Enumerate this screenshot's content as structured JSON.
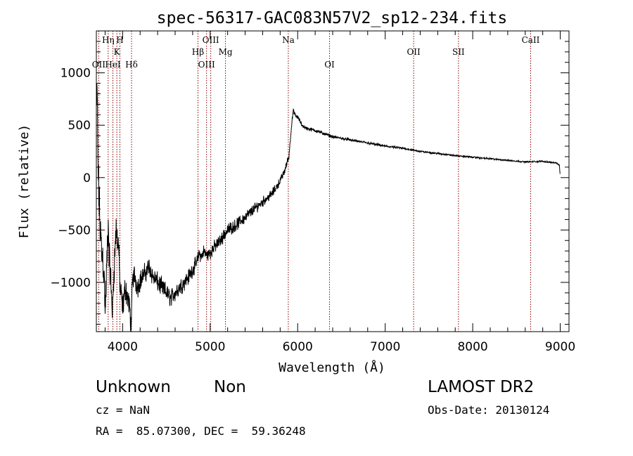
{
  "chart_data": {
    "type": "line",
    "title": "spec-56317-GAC083N57V2_sp12-234.fits",
    "xlabel": "Wavelength (Å)",
    "ylabel": "Flux (relative)",
    "xlim": [
      3700,
      9100
    ],
    "ylim": [
      -1470,
      1400
    ],
    "xticks": [
      4000,
      5000,
      6000,
      7000,
      8000,
      9000
    ],
    "yticks": [
      -1000,
      -500,
      0,
      500,
      1000
    ],
    "x_minor_step": 200,
    "y_minor_step": 100,
    "grid": false,
    "line_color": "#000000",
    "marker_color": "#8b0000",
    "anchors": [
      [
        3705,
        700
      ],
      [
        3710,
        800
      ],
      [
        3715,
        400
      ],
      [
        3722,
        0
      ],
      [
        3730,
        -200
      ],
      [
        3745,
        -500
      ],
      [
        3760,
        -700
      ],
      [
        3780,
        -800
      ],
      [
        3795,
        -1100
      ],
      [
        3800,
        -1300
      ],
      [
        3815,
        -950
      ],
      [
        3835,
        -450
      ],
      [
        3850,
        -800
      ],
      [
        3870,
        -1050
      ],
      [
        3885,
        -1300
      ],
      [
        3900,
        -900
      ],
      [
        3925,
        -500
      ],
      [
        3955,
        -650
      ],
      [
        3970,
        -1050
      ],
      [
        4000,
        -1250
      ],
      [
        4030,
        -1050
      ],
      [
        4060,
        -1150
      ],
      [
        4080,
        -1250
      ],
      [
        4100,
        -1450
      ],
      [
        4110,
        -1000
      ],
      [
        4130,
        -920
      ],
      [
        4170,
        -1050
      ],
      [
        4200,
        -980
      ],
      [
        4250,
        -920
      ],
      [
        4300,
        -850
      ],
      [
        4350,
        -950
      ],
      [
        4400,
        -1000
      ],
      [
        4450,
        -1050
      ],
      [
        4500,
        -1100
      ],
      [
        4550,
        -1150
      ],
      [
        4600,
        -1100
      ],
      [
        4650,
        -1050
      ],
      [
        4700,
        -1000
      ],
      [
        4750,
        -950
      ],
      [
        4800,
        -880
      ],
      [
        4850,
        -800
      ],
      [
        4880,
        -720
      ],
      [
        4900,
        -760
      ],
      [
        4930,
        -700
      ],
      [
        4960,
        -740
      ],
      [
        5000,
        -720
      ],
      [
        5050,
        -660
      ],
      [
        5100,
        -620
      ],
      [
        5150,
        -560
      ],
      [
        5200,
        -500
      ],
      [
        5300,
        -450
      ],
      [
        5400,
        -380
      ],
      [
        5500,
        -300
      ],
      [
        5600,
        -230
      ],
      [
        5700,
        -160
      ],
      [
        5750,
        -100
      ],
      [
        5800,
        -30
      ],
      [
        5850,
        60
      ],
      [
        5880,
        150
      ],
      [
        5900,
        200
      ],
      [
        5930,
        500
      ],
      [
        5950,
        640
      ],
      [
        5980,
        580
      ],
      [
        6000,
        580
      ],
      [
        6050,
        500
      ],
      [
        6100,
        470
      ],
      [
        6200,
        450
      ],
      [
        6300,
        420
      ],
      [
        6400,
        390
      ],
      [
        6600,
        360
      ],
      [
        6800,
        330
      ],
      [
        7000,
        300
      ],
      [
        7200,
        280
      ],
      [
        7400,
        250
      ],
      [
        7600,
        230
      ],
      [
        7800,
        210
      ],
      [
        8000,
        195
      ],
      [
        8200,
        180
      ],
      [
        8400,
        165
      ],
      [
        8600,
        150
      ],
      [
        8800,
        155
      ],
      [
        8950,
        140
      ],
      [
        8990,
        120
      ],
      [
        9000,
        10
      ]
    ],
    "noise": [
      [
        3700,
        300
      ],
      [
        4000,
        160
      ],
      [
        4200,
        120
      ],
      [
        4500,
        110
      ],
      [
        4900,
        80
      ],
      [
        5400,
        70
      ],
      [
        5900,
        40
      ],
      [
        5950,
        25
      ],
      [
        6500,
        16
      ],
      [
        7500,
        11
      ],
      [
        9000,
        8
      ]
    ],
    "lines": [
      {
        "label": "OII",
        "x": 3727,
        "row": 3
      },
      {
        "label": "Hη",
        "x": 3835,
        "row": 1
      },
      {
        "label": "HeI",
        "x": 3889,
        "row": 3
      },
      {
        "label": "K",
        "x": 3934,
        "row": 2
      },
      {
        "label": "H",
        "x": 3969,
        "row": 1
      },
      {
        "label": "Hδ",
        "x": 4102,
        "row": 3
      },
      {
        "label": "Hβ",
        "x": 4861,
        "row": 2
      },
      {
        "label": "OIII",
        "x": 4959,
        "row": 3
      },
      {
        "label": "OIII",
        "x": 5007,
        "row": 1
      },
      {
        "label": "Mg",
        "x": 5175,
        "row": 2
      },
      {
        "label": "Na",
        "x": 5893,
        "row": 1
      },
      {
        "label": "OI",
        "x": 6364,
        "row": 3
      },
      {
        "label": "OII",
        "x": 7325,
        "row": 2
      },
      {
        "label": "SII",
        "x": 7837,
        "row": 2
      },
      {
        "label": "CaII",
        "x": 8662,
        "row": 1
      }
    ]
  },
  "info": {
    "class": "Unknown",
    "subclass": "Non",
    "survey": "LAMOST DR2",
    "cz": "cz = NaN",
    "obs_date": "Obs-Date: 20130124",
    "coords": "RA =  85.07300, DEC =  59.36248"
  }
}
